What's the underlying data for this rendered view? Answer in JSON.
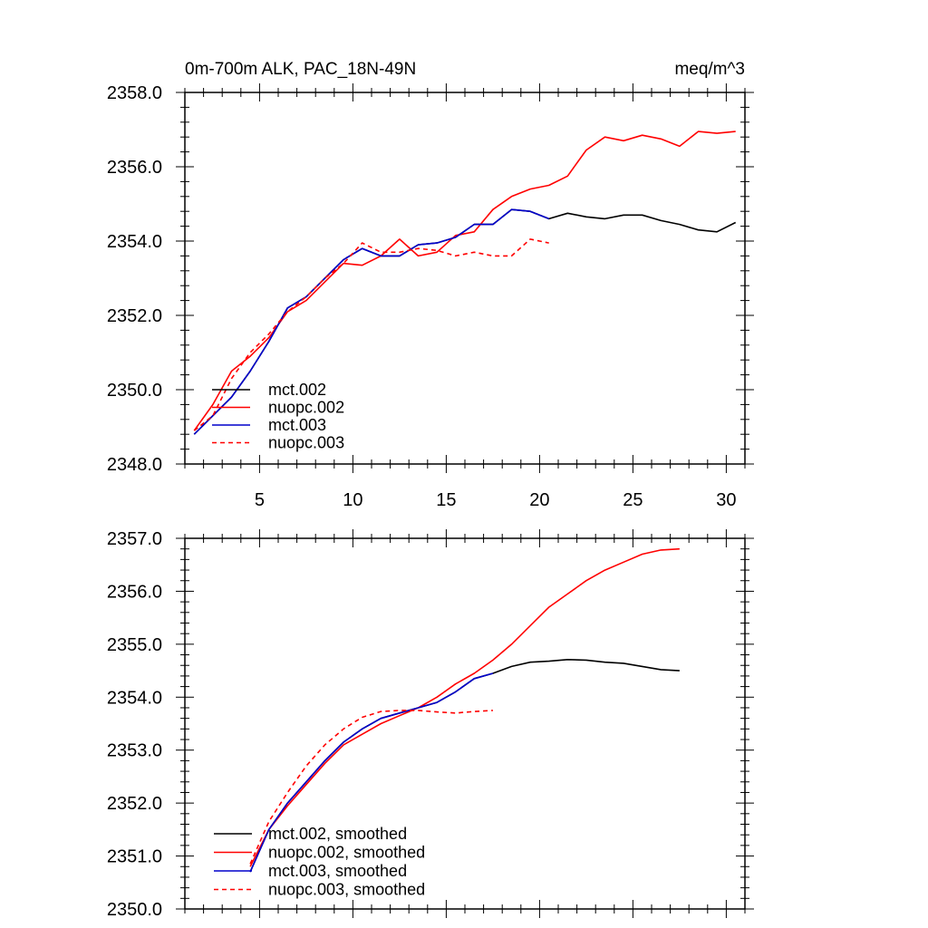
{
  "colors": {
    "mct.002": "#000000",
    "nuopc.002": "#ff0000",
    "mct.003": "#0000cc",
    "nuopc.003": "#ff0000"
  },
  "chart_data": [
    {
      "type": "line",
      "title_left": "0m-700m ALK, PAC_18N-49N",
      "title_right": "meq/m^3",
      "xlim": [
        1,
        31
      ],
      "ylim": [
        2348,
        2358
      ],
      "xticks": [
        5,
        10,
        15,
        20,
        25,
        30
      ],
      "yticks": [
        2348,
        2350,
        2352,
        2354,
        2356,
        2358
      ],
      "ytick_labels": [
        "2348.0",
        "2350.0",
        "2352.0",
        "2354.0",
        "2356.0",
        "2358.0"
      ],
      "grid": false,
      "legend_position": "bottom-left",
      "series": [
        {
          "name": "mct.002",
          "dash": false,
          "x": [
            1.5,
            2.5,
            3.5,
            4.5,
            5.5,
            6.5,
            7.5,
            8.5,
            9.5,
            10.5,
            11.5,
            12.5,
            13.5,
            14.5,
            15.5,
            16.5,
            17.5,
            18.5,
            19.5,
            20.5,
            21.5,
            22.5,
            23.5,
            24.5,
            25.5,
            26.5,
            27.5,
            28.5,
            29.5,
            30.5
          ],
          "y": [
            2348.8,
            2349.3,
            2349.8,
            2350.5,
            2351.3,
            2352.2,
            2352.5,
            2353.0,
            2353.5,
            2353.8,
            2353.6,
            2353.6,
            2353.9,
            2353.95,
            2354.1,
            2354.45,
            2354.45,
            2354.85,
            2354.8,
            2354.6,
            2354.75,
            2354.65,
            2354.6,
            2354.7,
            2354.7,
            2354.55,
            2354.45,
            2354.3,
            2354.25,
            2354.5
          ]
        },
        {
          "name": "nuopc.002",
          "dash": false,
          "x": [
            1.5,
            2.5,
            3.5,
            4.5,
            5.5,
            6.5,
            7.5,
            8.5,
            9.5,
            10.5,
            11.5,
            12.5,
            13.5,
            14.5,
            15.5,
            16.5,
            17.5,
            18.5,
            19.5,
            20.5,
            21.5,
            22.5,
            23.5,
            24.5,
            25.5,
            26.5,
            27.5,
            28.5,
            29.5,
            30.5
          ],
          "y": [
            2348.9,
            2349.6,
            2350.5,
            2350.9,
            2351.4,
            2352.1,
            2352.4,
            2352.9,
            2353.4,
            2353.35,
            2353.6,
            2354.05,
            2353.6,
            2353.7,
            2354.15,
            2354.25,
            2354.85,
            2355.2,
            2355.4,
            2355.5,
            2355.75,
            2356.45,
            2356.8,
            2356.7,
            2356.85,
            2356.75,
            2356.55,
            2356.95,
            2356.9,
            2356.95
          ]
        },
        {
          "name": "mct.003",
          "dash": false,
          "x": [
            1.5,
            2.5,
            3.5,
            4.5,
            5.5,
            6.5,
            7.5,
            8.5,
            9.5,
            10.5,
            11.5,
            12.5,
            13.5,
            14.5,
            15.5,
            16.5,
            17.5,
            18.5,
            19.5,
            20.5
          ],
          "y": [
            2348.8,
            2349.3,
            2349.8,
            2350.5,
            2351.3,
            2352.2,
            2352.5,
            2353.0,
            2353.5,
            2353.8,
            2353.6,
            2353.6,
            2353.9,
            2353.95,
            2354.1,
            2354.45,
            2354.45,
            2354.85,
            2354.8,
            2354.6
          ]
        },
        {
          "name": "nuopc.003",
          "dash": true,
          "x": [
            1.5,
            2.5,
            3.5,
            4.5,
            5.5,
            6.5,
            7.5,
            8.5,
            9.5,
            10.5,
            11.5,
            12.5,
            13.5,
            14.5,
            15.5,
            16.5,
            17.5,
            18.5,
            19.5,
            20.5
          ],
          "y": [
            2348.9,
            2349.3,
            2350.3,
            2351.0,
            2351.5,
            2352.1,
            2352.5,
            2353.0,
            2353.4,
            2353.95,
            2353.7,
            2353.7,
            2353.8,
            2353.75,
            2353.6,
            2353.7,
            2353.6,
            2353.6,
            2354.05,
            2353.95
          ]
        }
      ]
    },
    {
      "type": "line",
      "xlim": [
        1,
        31
      ],
      "ylim": [
        2350,
        2357
      ],
      "yticks": [
        2350,
        2351,
        2352,
        2353,
        2354,
        2355,
        2356,
        2357
      ],
      "ytick_labels": [
        "2350.0",
        "2351.0",
        "2352.0",
        "2353.0",
        "2354.0",
        "2355.0",
        "2356.0",
        "2357.0"
      ],
      "grid": false,
      "legend_position": "bottom-left",
      "series": [
        {
          "name": "mct.002, smoothed",
          "dash": false,
          "x": [
            4.5,
            5.5,
            6.5,
            7.5,
            8.5,
            9.5,
            10.5,
            11.5,
            12.5,
            13.5,
            14.5,
            15.5,
            16.5,
            17.5,
            18.5,
            19.5,
            20.5,
            21.5,
            22.5,
            23.5,
            24.5,
            25.5,
            26.5,
            27.5
          ],
          "y": [
            2350.7,
            2351.5,
            2352.0,
            2352.4,
            2352.8,
            2353.15,
            2353.4,
            2353.6,
            2353.7,
            2353.8,
            2353.9,
            2354.1,
            2354.35,
            2354.45,
            2354.58,
            2354.66,
            2354.68,
            2354.71,
            2354.7,
            2354.66,
            2354.64,
            2354.58,
            2354.52,
            2354.5
          ]
        },
        {
          "name": "nuopc.002, smoothed",
          "dash": false,
          "x": [
            4.5,
            5.5,
            6.5,
            7.5,
            8.5,
            9.5,
            10.5,
            11.5,
            12.5,
            13.5,
            14.5,
            15.5,
            16.5,
            17.5,
            18.5,
            19.5,
            20.5,
            21.5,
            22.5,
            23.5,
            24.5,
            25.5,
            26.5,
            27.5
          ],
          "y": [
            2350.8,
            2351.5,
            2351.95,
            2352.35,
            2352.75,
            2353.1,
            2353.3,
            2353.5,
            2353.65,
            2353.8,
            2354.0,
            2354.25,
            2354.45,
            2354.7,
            2355.0,
            2355.35,
            2355.7,
            2355.95,
            2356.2,
            2356.4,
            2356.55,
            2356.7,
            2356.78,
            2356.8
          ]
        },
        {
          "name": "mct.003, smoothed",
          "dash": false,
          "x": [
            4.5,
            5.5,
            6.5,
            7.5,
            8.5,
            9.5,
            10.5,
            11.5,
            12.5,
            13.5,
            14.5,
            15.5,
            16.5,
            17.5
          ],
          "y": [
            2350.7,
            2351.5,
            2352.0,
            2352.4,
            2352.8,
            2353.15,
            2353.4,
            2353.6,
            2353.7,
            2353.8,
            2353.9,
            2354.1,
            2354.35,
            2354.45
          ]
        },
        {
          "name": "nuopc.003, smoothed",
          "dash": true,
          "x": [
            4.5,
            5.5,
            6.5,
            7.5,
            8.5,
            9.5,
            10.5,
            11.5,
            12.5,
            13.5,
            14.5,
            15.5,
            16.5,
            17.5
          ],
          "y": [
            2350.85,
            2351.65,
            2352.2,
            2352.7,
            2353.1,
            2353.4,
            2353.62,
            2353.73,
            2353.75,
            2353.75,
            2353.72,
            2353.7,
            2353.73,
            2353.75
          ]
        }
      ]
    }
  ]
}
